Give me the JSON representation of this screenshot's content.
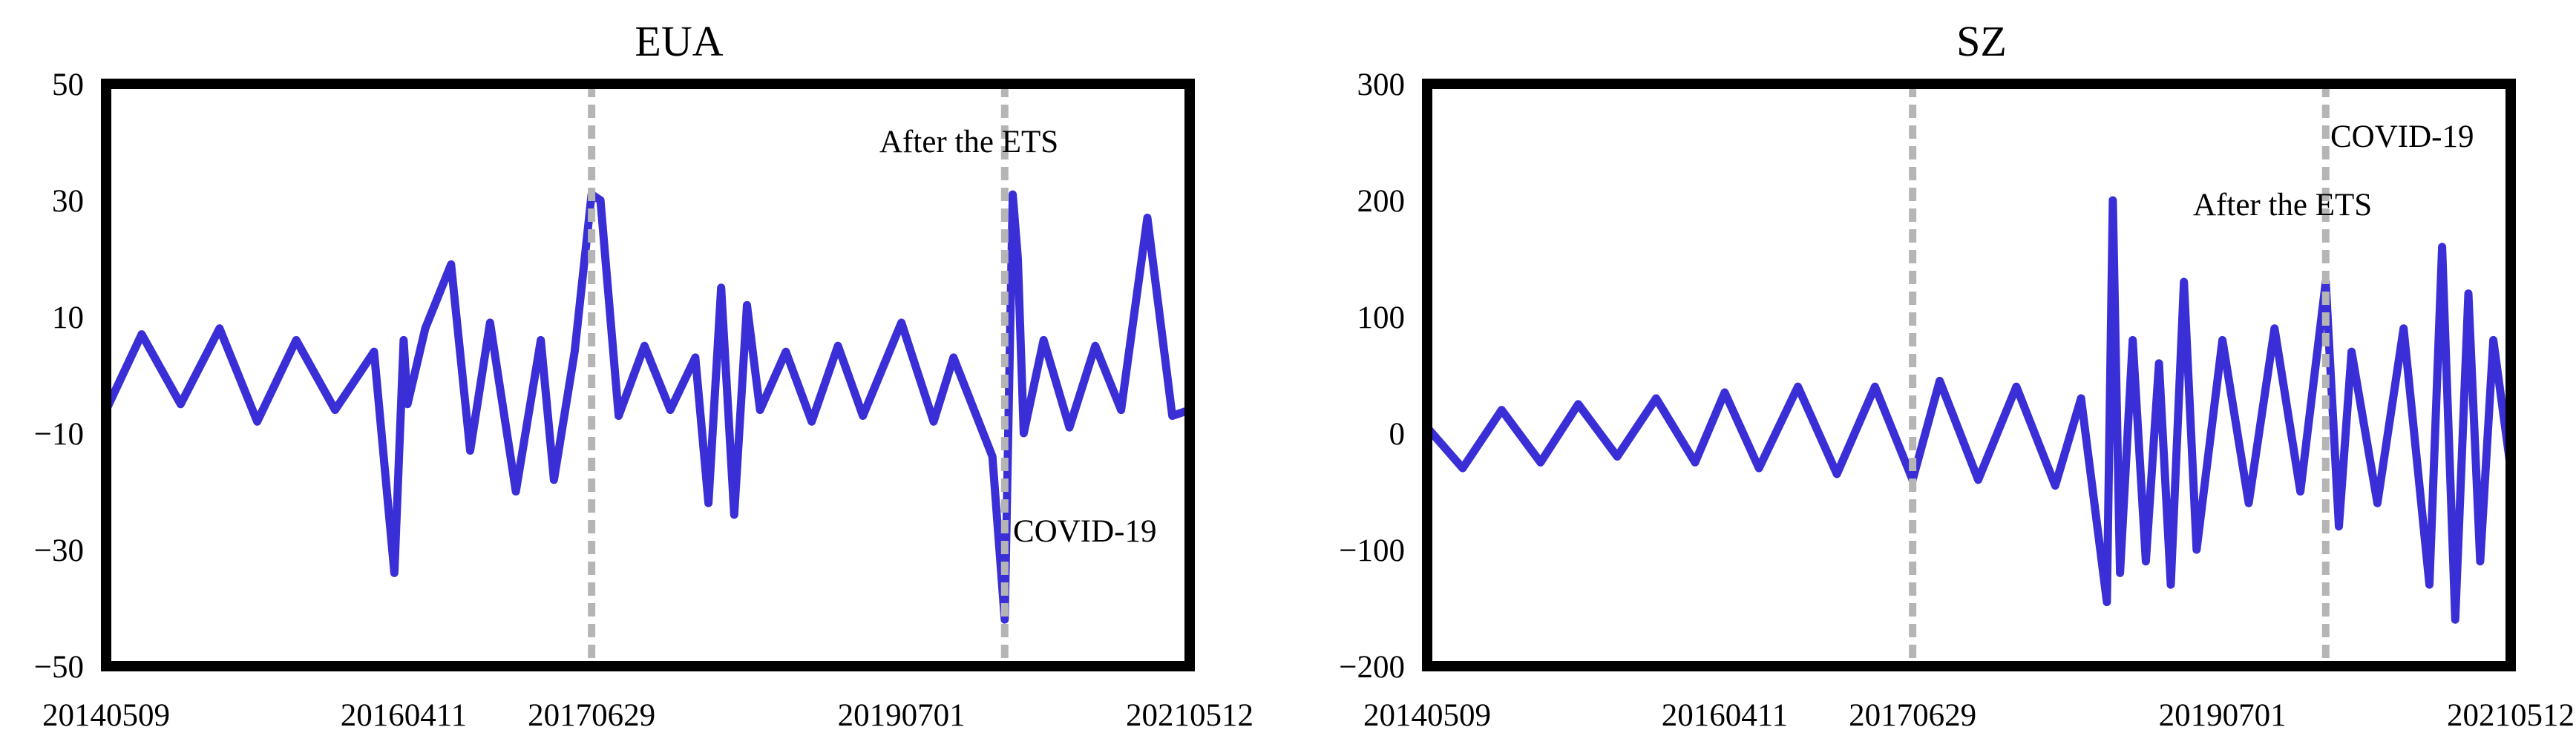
{
  "chart_data": [
    {
      "type": "line",
      "title": "EUA",
      "xlabel": "",
      "ylabel": "",
      "x_tick_labels": [
        "20140509",
        "20160411",
        "20170629",
        "20190701",
        "20210512"
      ],
      "ylim": [
        -50,
        50
      ],
      "y_ticks": [
        -50,
        -30,
        -10,
        10,
        30,
        50
      ],
      "grid": false,
      "series": [
        {
          "color": "#3a2fd6",
          "x": [
            "20140509",
            "20140801",
            "20141101",
            "20150201",
            "20150501",
            "20150801",
            "20151101",
            "20160201",
            "20160320",
            "20160411",
            "20160420",
            "20160601",
            "20160801",
            "20160915",
            "20161101",
            "20170101",
            "20170301",
            "20170401",
            "20170520",
            "20170629",
            "20170720",
            "20170901",
            "20171101",
            "20180101",
            "20180301",
            "20180401",
            "20180501",
            "20180601",
            "20180701",
            "20180801",
            "20181001",
            "20181201",
            "20190201",
            "20190401",
            "20190701",
            "20190915",
            "20191101",
            "20200201",
            "20200301",
            "20200320",
            "20200401",
            "20200415",
            "20200601",
            "20200801",
            "20201001",
            "20201201",
            "20210201",
            "20210401",
            "20210512"
          ],
          "values": [
            -6,
            7,
            -5,
            8,
            -8,
            6,
            -6,
            4,
            -34,
            6,
            -5,
            8,
            19,
            -13,
            9,
            -20,
            6,
            -18,
            4,
            31,
            30,
            -7,
            5,
            -6,
            3,
            -22,
            15,
            -24,
            12,
            -6,
            4,
            -8,
            5,
            -7,
            9,
            -8,
            3,
            -14,
            -42,
            31,
            20,
            -10,
            6,
            -9,
            5,
            -6,
            27,
            -7,
            -6
          ]
        }
      ],
      "annotations": [
        {
          "text": "After the ETS",
          "x": "20190701",
          "y": 35
        },
        {
          "text": "COVID-19",
          "x": "20210101",
          "y": -27
        }
      ],
      "vertical_markers": [
        "20170629",
        "20200301"
      ]
    },
    {
      "type": "line",
      "title": "SZ",
      "xlabel": "",
      "ylabel": "",
      "x_tick_labels": [
        "20140509",
        "20160411",
        "20170629",
        "20190701",
        "20210512"
      ],
      "ylim": [
        -200,
        300
      ],
      "y_ticks": [
        -200,
        -100,
        0,
        100,
        200,
        300
      ],
      "grid": false,
      "series": [
        {
          "color": "#3a2fd6",
          "x": [
            "20140509",
            "20140801",
            "20141101",
            "20150201",
            "20150501",
            "20150801",
            "20151101",
            "20160201",
            "20160411",
            "20160701",
            "20161001",
            "20170101",
            "20170401",
            "20170629",
            "20170901",
            "20171201",
            "20180301",
            "20180601",
            "20180801",
            "20181001",
            "20181015",
            "20181101",
            "20181201",
            "20190101",
            "20190201",
            "20190301",
            "20190401",
            "20190501",
            "20190701",
            "20190901",
            "20191101",
            "20200101",
            "20200301",
            "20200401",
            "20200501",
            "20200701",
            "20200901",
            "20201101",
            "20201201",
            "20210101",
            "20210201",
            "20210301",
            "20210401",
            "20210512"
          ],
          "values": [
            5,
            -30,
            20,
            -25,
            25,
            -20,
            30,
            -25,
            35,
            -30,
            40,
            -35,
            40,
            -40,
            45,
            -40,
            40,
            -45,
            30,
            -145,
            200,
            -120,
            80,
            -110,
            60,
            -130,
            130,
            -100,
            80,
            -60,
            90,
            -50,
            130,
            -80,
            70,
            -60,
            90,
            -130,
            160,
            -160,
            120,
            -110,
            80,
            -30
          ]
        }
      ],
      "annotations": [
        {
          "text": "After the ETS",
          "x": "20190101",
          "y": 195
        },
        {
          "text": "COVID-19",
          "x": "20201015",
          "y": 258
        }
      ],
      "vertical_markers": [
        "20170629",
        "20200301"
      ]
    }
  ]
}
